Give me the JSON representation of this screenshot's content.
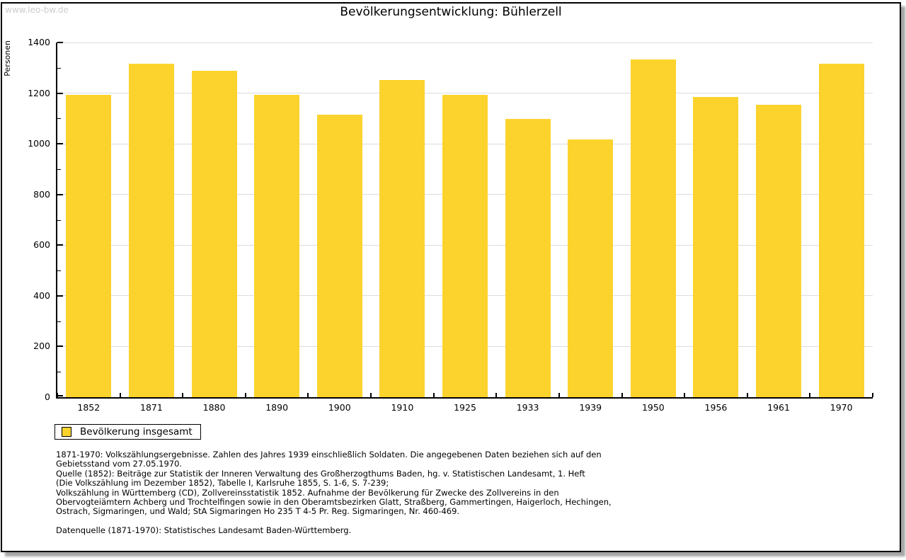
{
  "watermark": "www.leo-bw.de",
  "title": "Bevölkerungsentwicklung: Bühlerzell",
  "chart_data": {
    "type": "bar",
    "title": "Bevölkerungsentwicklung: Bühlerzell",
    "xlabel": "",
    "ylabel": "Personen",
    "ylim": [
      0,
      1400
    ],
    "ytick_step": 200,
    "yminor_step": 100,
    "grid": true,
    "legend_position": "bottom-left",
    "categories": [
      "1852",
      "1871",
      "1880",
      "1890",
      "1900",
      "1910",
      "1925",
      "1933",
      "1939",
      "1950",
      "1956",
      "1961",
      "1970"
    ],
    "series": [
      {
        "name": "Bevölkerung insgesamt",
        "color": "#fcd32d",
        "values": [
          1192,
          1317,
          1287,
          1192,
          1115,
          1252,
          1192,
          1098,
          1017,
          1334,
          1184,
          1153,
          1317
        ]
      }
    ]
  },
  "legend": {
    "label": "Bevölkerung insgesamt"
  },
  "footnotes": [
    "1871-1970: Volkszählungsergebnisse. Zahlen des Jahres 1939 einschließlich Soldaten. Die angegebenen Daten beziehen sich auf den",
    "Gebietsstand vom 27.05.1970.",
    "Quelle (1852): Beiträge zur Statistik der Inneren Verwaltung des Großherzogthums Baden, hg. v. Statistischen Landesamt, 1. Heft",
    "(Die Volkszählung im Dezember 1852), Tabelle I, Karlsruhe 1855, S. 1-6, S. 7-239;",
    "Volkszählung in Württemberg (CD), Zollvereinsstatistik 1852. Aufnahme der Bevölkerung für Zwecke des Zollvereins in den",
    "Obervogteiämtern Achberg und Trochtelfingen sowie in den Oberamtsbezirken Glatt, Straßberg, Gammertingen, Haigerloch, Hechingen,",
    "Ostrach, Sigmaringen, und Wald; StA Sigmaringen Ho 235 T 4-5 Pr. Reg. Sigmaringen, Nr. 460-469."
  ],
  "datasource": "Datenquelle (1871-1970): Statistisches Landesamt Baden-Württemberg."
}
